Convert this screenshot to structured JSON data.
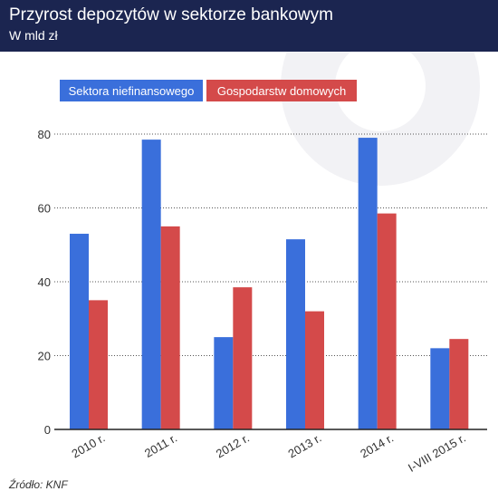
{
  "header": {
    "title": "Przyrost depozytów w sektorze bankowym",
    "subtitle": "W mld zł"
  },
  "source": "Źródło: KNF",
  "colors": {
    "header_bg": "#1b2550",
    "series_1": "#3a6fdb",
    "series_2": "#d44a4a",
    "grid": "#555555",
    "axis_text": "#333333"
  },
  "chart_data": {
    "type": "bar",
    "categories": [
      "2010 r.",
      "2011 r.",
      "2012 r.",
      "2013 r.",
      "2014 r.",
      "I-VIII 2015 r."
    ],
    "series": [
      {
        "name": "Sektora niefinansowego",
        "values": [
          53,
          78.5,
          25,
          51.5,
          79,
          22
        ]
      },
      {
        "name": "Gospodarstw domowych",
        "values": [
          35,
          55,
          38.5,
          32,
          58.5,
          24.5
        ]
      }
    ],
    "ylim": [
      0,
      80
    ],
    "yticks": [
      0,
      20,
      40,
      60,
      80
    ],
    "grid": true,
    "legend": "top-left"
  }
}
